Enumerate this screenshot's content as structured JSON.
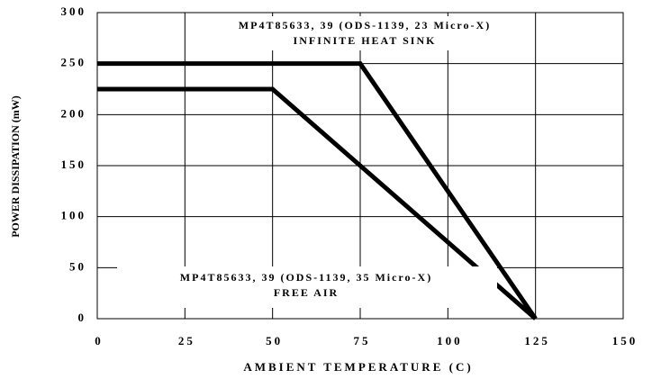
{
  "chart_data": {
    "type": "line",
    "x_label": "AMBIENT TEMPERATURE (C)",
    "y_label": "POWER DISSIPATION (mW)",
    "annotations": [
      "MP4T85633, 39 (ODS-1139, 23 Micro-X)",
      "INFINITE HEAT SINK",
      "MP4T85633, 39 (ODS-1139, 35 Micro-X)",
      "FREE AIR"
    ],
    "series": [
      {
        "name": "INFINITE HEAT SINK",
        "color": "#000000",
        "x": [
          0,
          75,
          125
        ],
        "values": [
          250,
          250,
          0
        ]
      },
      {
        "name": "FREE AIR",
        "color": "#000000",
        "x": [
          0,
          50,
          125
        ],
        "values": [
          225,
          225,
          0
        ]
      }
    ],
    "xlim": [
      0,
      150
    ],
    "xticks": [
      0,
      25,
      50,
      75,
      100,
      125,
      150
    ],
    "ylim": [
      0,
      300
    ],
    "yticks": [
      0,
      50,
      100,
      150,
      200,
      250,
      300
    ],
    "grid": true
  }
}
